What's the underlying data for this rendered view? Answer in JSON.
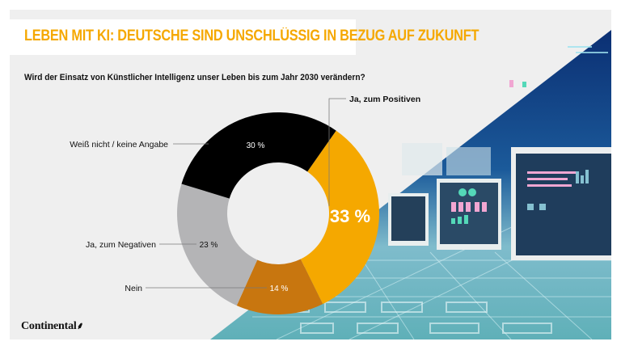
{
  "header": {
    "title": "LEBEN MIT KI: DEUTSCHE SIND UNSCHLÜSSIG IN BEZUG AUF ZUKUNFT",
    "question": "Wird der Einsatz von Künstlicher Intelligenz unser Leben bis zum Jahr 2030 verändern?"
  },
  "brand": {
    "logo_text": "Continental",
    "logo_mark": "⸙"
  },
  "colors": {
    "accent": "#f5a800",
    "background": "#efefef"
  },
  "chart_data": {
    "type": "pie",
    "variant": "donut",
    "title": "Wird der Einsatz von Künstlicher Intelligenz unser Leben bis zum Jahr 2030 verändern?",
    "unit": "%",
    "start_angle_deg": 35,
    "direction": "clockwise",
    "slices": [
      {
        "label": "Ja, zum Positiven",
        "value": 33,
        "display": "33 %",
        "color": "#f5a800",
        "text_color": "#ffffff",
        "emphasis": true
      },
      {
        "label": "Nein",
        "value": 14,
        "display": "14 %",
        "color": "#c8760f",
        "text_color": "#ffffff",
        "emphasis": false
      },
      {
        "label": "Ja, zum Negativen",
        "value": 23,
        "display": "23 %",
        "color": "#b4b4b6",
        "text_color": "#111111",
        "emphasis": false
      },
      {
        "label": "Weiß nicht / keine Angabe",
        "value": 30,
        "display": "30 %",
        "color": "#000000",
        "text_color": "#ffffff",
        "emphasis": false
      }
    ]
  }
}
